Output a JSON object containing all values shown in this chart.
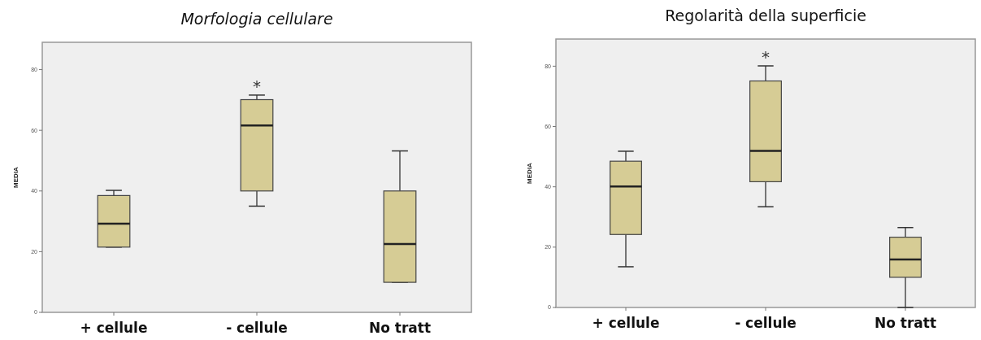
{
  "chart_data": [
    {
      "type": "box",
      "title": "Morfologia cellulare",
      "ylabel": "MEDIA",
      "categories": [
        "+ cellule",
        "- cellule",
        "No tratt"
      ],
      "ylim": [
        0,
        89
      ],
      "yticks": [
        0,
        20,
        40,
        60,
        80
      ],
      "series": [
        {
          "color": "#d6cc95",
          "boxes": [
            {
              "low": 21.5,
              "q1": 21.5,
              "median": 29.2,
              "q3": 38.5,
              "high": 40.2
            },
            {
              "low": 35,
              "q1": 40,
              "median": 61.6,
              "q3": 70.1,
              "high": 71.6
            },
            {
              "low": 9.9,
              "q1": 9.9,
              "median": 22.5,
              "q3": 40,
              "high": 53.2
            }
          ]
        }
      ],
      "annotations": [
        "*"
      ]
    },
    {
      "type": "box",
      "title": "Regolarità della superficie",
      "ylabel": "MEDIA",
      "categories": [
        "+ cellule",
        "- cellule",
        "No tratt"
      ],
      "ylim": [
        0,
        89
      ],
      "yticks": [
        0,
        20,
        40,
        60,
        80
      ],
      "series": [
        {
          "color": "#d6cc95",
          "boxes": [
            {
              "low": 13.5,
              "q1": 24.2,
              "median": 40.1,
              "q3": 48.5,
              "high": 51.8
            },
            {
              "low": 33.4,
              "q1": 41.7,
              "median": 51.9,
              "q3": 75.1,
              "high": 80.1
            },
            {
              "low": 0,
              "q1": 10,
              "median": 15.9,
              "q3": 23.3,
              "high": 26.5
            }
          ]
        }
      ],
      "annotations": [
        "*"
      ]
    }
  ]
}
